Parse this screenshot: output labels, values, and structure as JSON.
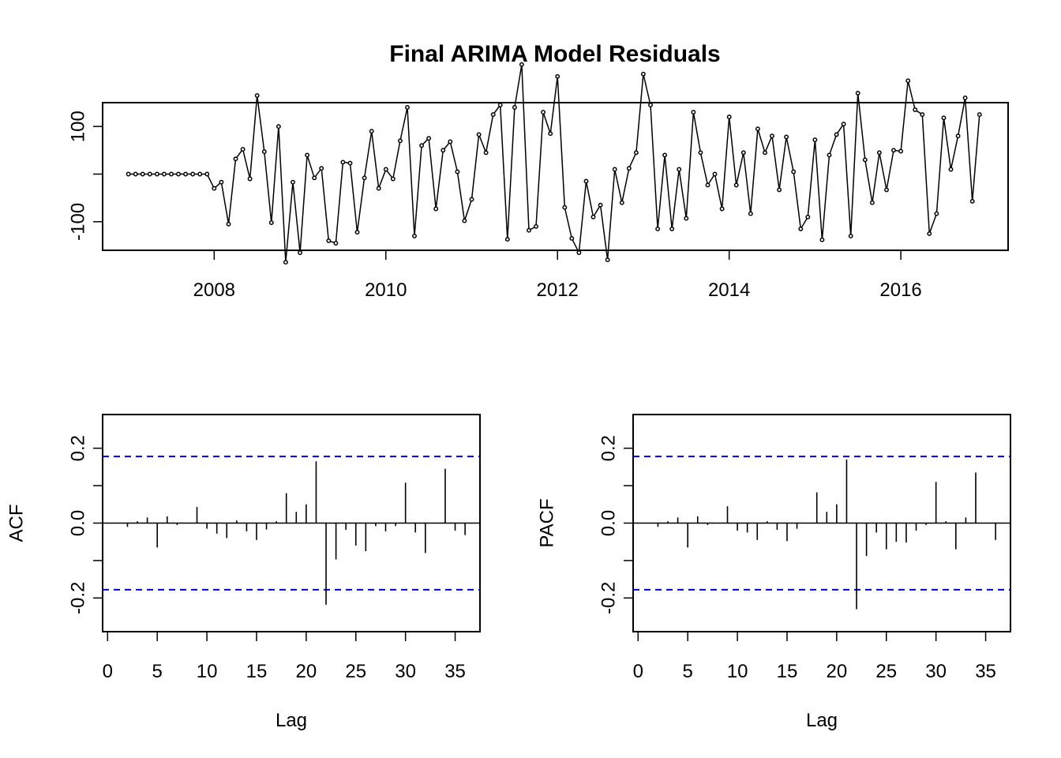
{
  "title": "Final ARIMA Model Residuals",
  "chart_data": [
    {
      "type": "line",
      "name": "residuals",
      "x_start": 2007.0,
      "frequency": 12,
      "xlim": [
        2006.7,
        2017.25
      ],
      "ylim": [
        -160,
        150
      ],
      "x_ticks": [
        2008,
        2010,
        2012,
        2014,
        2016
      ],
      "x_tick_labels": [
        "2008",
        "2010",
        "2012",
        "2014",
        "2016"
      ],
      "y_ticks": [
        -100,
        100
      ],
      "y_tick_labels": [
        "-100",
        "100"
      ],
      "y_minor_ticks": [
        -100,
        0,
        100
      ],
      "values": [
        0,
        0,
        0,
        0,
        0,
        0,
        0,
        0,
        0,
        0,
        0,
        0,
        -30,
        -17,
        -105,
        32,
        52,
        -10,
        165,
        47,
        -102,
        100,
        -185,
        -17,
        -165,
        40,
        -8,
        12,
        -140,
        -145,
        25,
        23,
        -122,
        -8,
        90,
        -30,
        10,
        -10,
        70,
        140,
        -130,
        60,
        75,
        -73,
        50,
        68,
        5,
        -98,
        -53,
        83,
        45,
        125,
        145,
        -137,
        140,
        230,
        -118,
        -110,
        130,
        85,
        205,
        -70,
        -135,
        -165,
        -15,
        -90,
        -65,
        -180,
        10,
        -60,
        12,
        45,
        210,
        145,
        -115,
        40,
        -115,
        10,
        -93,
        130,
        45,
        -23,
        0,
        -73,
        120,
        -23,
        45,
        -83,
        95,
        45,
        80,
        -33,
        78,
        5,
        -115,
        -90,
        72,
        -138,
        40,
        83,
        105,
        -130,
        170,
        30,
        -60,
        45,
        -33,
        50,
        48,
        196,
        135,
        125,
        -125,
        -83,
        118,
        10,
        80,
        160,
        -57,
        125
      ],
      "ylabel": ""
    },
    {
      "type": "bar",
      "name": "ACF",
      "xlabel": "Lag",
      "ylabel": "ACF",
      "xlim": [
        -0.5,
        37.5
      ],
      "ylim": [
        -0.29,
        0.29
      ],
      "x_ticks": [
        0,
        5,
        10,
        15,
        20,
        25,
        30,
        35
      ],
      "x_tick_labels": [
        "0",
        "5",
        "10",
        "15",
        "20",
        "25",
        "30",
        "35"
      ],
      "y_ticks": [
        -0.2,
        0.0,
        0.2
      ],
      "y_tick_labels": [
        "-0.2",
        "0.0",
        "0.2"
      ],
      "y_minor_ticks": [
        -0.2,
        -0.1,
        0.0,
        0.1,
        0.2
      ],
      "ci": 0.178,
      "lags": [
        1,
        2,
        3,
        4,
        5,
        6,
        7,
        8,
        9,
        10,
        11,
        12,
        13,
        14,
        15,
        16,
        17,
        18,
        19,
        20,
        21,
        22,
        23,
        24,
        25,
        26,
        27,
        28,
        29,
        30,
        31,
        32,
        33,
        34,
        35,
        36
      ],
      "values": [
        0,
        -0.01,
        0.005,
        0.015,
        -0.065,
        0.018,
        -0.005,
        0,
        0.043,
        -0.015,
        -0.028,
        -0.04,
        0.007,
        -0.022,
        -0.045,
        -0.017,
        0.005,
        0.08,
        0.03,
        0.05,
        0.165,
        -0.218,
        -0.097,
        -0.018,
        -0.06,
        -0.075,
        -0.008,
        -0.022,
        -0.008,
        0.108,
        -0.025,
        -0.08,
        0,
        0.145,
        -0.02,
        -0.032
      ]
    },
    {
      "type": "bar",
      "name": "PACF",
      "xlabel": "Lag",
      "ylabel": "PACF",
      "xlim": [
        -0.5,
        37.5
      ],
      "ylim": [
        -0.29,
        0.29
      ],
      "x_ticks": [
        0,
        5,
        10,
        15,
        20,
        25,
        30,
        35
      ],
      "x_tick_labels": [
        "0",
        "5",
        "10",
        "15",
        "20",
        "25",
        "30",
        "35"
      ],
      "y_ticks": [
        -0.2,
        0.0,
        0.2
      ],
      "y_tick_labels": [
        "-0.2",
        "0.0",
        "0.2"
      ],
      "y_minor_ticks": [
        -0.2,
        -0.1,
        0.0,
        0.1,
        0.2
      ],
      "ci": 0.178,
      "lags": [
        1,
        2,
        3,
        4,
        5,
        6,
        7,
        8,
        9,
        10,
        11,
        12,
        13,
        14,
        15,
        16,
        17,
        18,
        19,
        20,
        21,
        22,
        23,
        24,
        25,
        26,
        27,
        28,
        29,
        30,
        31,
        32,
        33,
        34,
        35,
        36
      ],
      "values": [
        0,
        -0.01,
        0.005,
        0.015,
        -0.065,
        0.018,
        -0.005,
        0,
        0.045,
        -0.02,
        -0.025,
        -0.045,
        0.005,
        -0.018,
        -0.048,
        -0.015,
        0,
        0.082,
        0.03,
        0.05,
        0.17,
        -0.23,
        -0.088,
        -0.025,
        -0.07,
        -0.05,
        -0.052,
        -0.02,
        -0.005,
        0.11,
        0.005,
        -0.07,
        0.015,
        0.135,
        0,
        -0.045
      ]
    }
  ]
}
